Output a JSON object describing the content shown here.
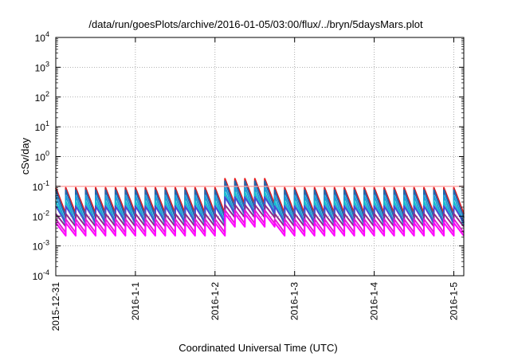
{
  "chart_data": {
    "type": "line",
    "title": "/data/run/goesPlots/archive/2016-01-05/03:00/flux/../bryn/5daysMars.plot",
    "xlabel": "Coordinated Universal Time (UTC)",
    "ylabel": "cSv/day",
    "yscale": "log",
    "ylim": [
      0.0001,
      10000
    ],
    "y_ticks": [
      {
        "value": 0.0001,
        "base": "10",
        "exp": "-4"
      },
      {
        "value": 0.001,
        "base": "10",
        "exp": "-3"
      },
      {
        "value": 0.01,
        "base": "10",
        "exp": "-2"
      },
      {
        "value": 0.1,
        "base": "10",
        "exp": "-1"
      },
      {
        "value": 1,
        "base": "10",
        "exp": "0"
      },
      {
        "value": 10,
        "base": "10",
        "exp": "1"
      },
      {
        "value": 100,
        "base": "10",
        "exp": "2"
      },
      {
        "value": 1000,
        "base": "10",
        "exp": "3"
      },
      {
        "value": 10000,
        "base": "10",
        "exp": "4"
      }
    ],
    "xlim": [
      "2015-12-31T00:00",
      "2016-01-05T03:00"
    ],
    "x_ticks": [
      {
        "value": "2015-12-31T00:00",
        "label": "2015-12-31"
      },
      {
        "value": "2016-01-01T00:00",
        "label": "2016-1-1"
      },
      {
        "value": "2016-01-02T00:00",
        "label": "2016-1-2"
      },
      {
        "value": "2016-01-03T00:00",
        "label": "2016-1-3"
      },
      {
        "value": "2016-01-04T00:00",
        "label": "2016-1-4"
      },
      {
        "value": "2016-01-05T00:00",
        "label": "2016-1-5"
      }
    ],
    "grid": true,
    "sawtooth_period_hours": 3,
    "threshold": {
      "value": 0.1,
      "color": "#ff9a9a"
    },
    "series": [
      {
        "color": "#e41a1c",
        "peak": 0.09,
        "trough": 0.012
      },
      {
        "color": "#2166ac",
        "peak": 0.075,
        "trough": 0.009
      },
      {
        "color": "#1f9bd8",
        "peak": 0.05,
        "trough": 0.006
      },
      {
        "color": "#17becf",
        "peak": 0.032,
        "trough": 0.005
      },
      {
        "color": "#4b4bd1",
        "peak": 0.022,
        "trough": 0.006
      },
      {
        "color": "#8e2c8e",
        "peak": 0.012,
        "trough": 0.0045
      },
      {
        "color": "#e41ad6",
        "peak": 0.008,
        "trough": 0.0028
      },
      {
        "color": "#ff00ff",
        "peak": 0.006,
        "trough": 0.0022
      }
    ],
    "event": {
      "start": "2016-01-02T03:00",
      "end": "2016-01-02T15:00",
      "multiplier": 2.0
    }
  }
}
